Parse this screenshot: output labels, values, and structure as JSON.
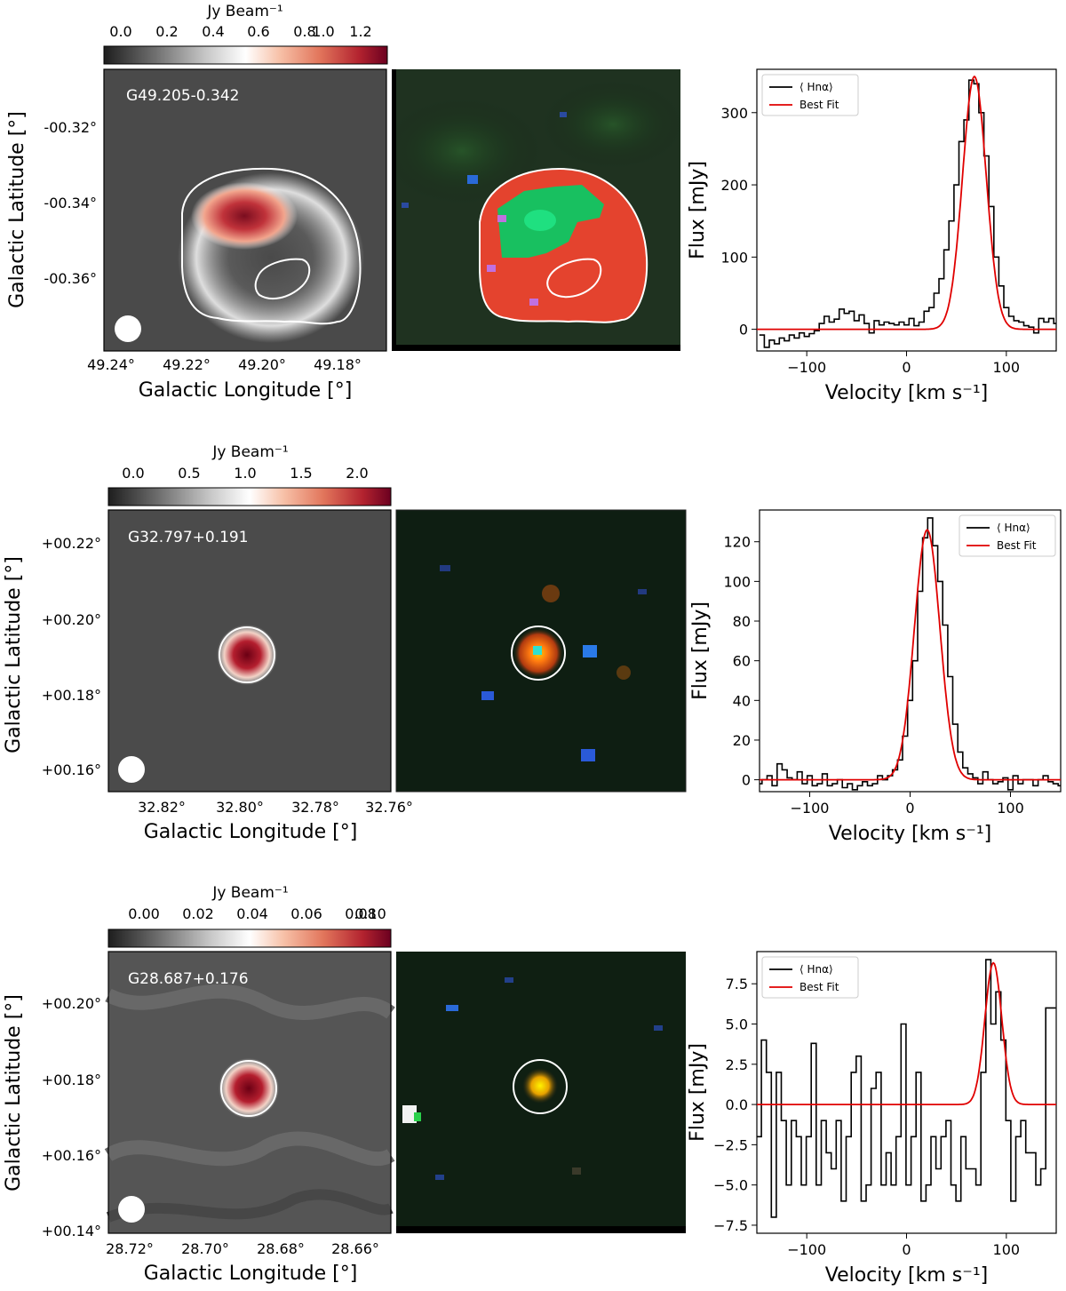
{
  "colors": {
    "cmap": [
      "#1e1e1e",
      "#6f6f6f",
      "#c7c7c7",
      "#ffffff",
      "#f7c1a8",
      "#e2765c",
      "#b3232f",
      "#6b0020"
    ],
    "fit": "#e00000",
    "obs": "#000000",
    "contour": "#ffffff"
  },
  "panels": [
    {
      "source_label": "G49.205-0.342",
      "colorbar": {
        "label": "Jy Beam⁻¹",
        "ticks": [
          "0.0",
          "0.2",
          "0.4",
          "0.6",
          "0.8",
          "1.0",
          "1.2"
        ]
      },
      "map": {
        "lon_ticks": [
          "49.24°",
          "49.22°",
          "49.20°",
          "49.18°"
        ],
        "lat_ticks": [
          "-00.32°",
          "-00.34°",
          "-00.36°"
        ],
        "xlabel": "Galactic Longitude [°]",
        "ylabel": "Galactic Latitude [°]"
      },
      "chart_data": {
        "type": "line",
        "xlabel": "Velocity [km s⁻¹]",
        "ylabel": "Flux [mJy]",
        "xlim": [
          -150,
          150
        ],
        "ylim": [
          -30,
          360
        ],
        "xticks": [
          -100,
          0,
          100
        ],
        "yticks": [
          0,
          100,
          200,
          300
        ],
        "legend": {
          "position": "top-left",
          "entries": [
            "⟨ Hnα⟩",
            "Best Fit"
          ]
        },
        "fit": {
          "amplitude": 350,
          "center": 68,
          "fwhm": 28
        },
        "step_width": 5,
        "series": [
          {
            "name": "⟨ Hnα⟩",
            "x": [
              -145,
              -140,
              -135,
              -130,
              -125,
              -120,
              -115,
              -110,
              -105,
              -100,
              -95,
              -90,
              -85,
              -80,
              -75,
              -70,
              -65,
              -60,
              -55,
              -50,
              -45,
              -40,
              -35,
              -30,
              -25,
              -20,
              -15,
              -10,
              -5,
              0,
              5,
              10,
              15,
              20,
              25,
              30,
              35,
              40,
              45,
              50,
              55,
              60,
              65,
              70,
              75,
              80,
              85,
              90,
              95,
              100,
              105,
              110,
              115,
              120,
              125,
              130,
              135,
              140,
              145,
              150
            ],
            "values": [
              -8,
              -25,
              -15,
              -20,
              -12,
              -16,
              -8,
              -12,
              -5,
              -10,
              -6,
              -2,
              8,
              18,
              10,
              14,
              28,
              22,
              25,
              12,
              20,
              8,
              -5,
              12,
              6,
              10,
              8,
              6,
              10,
              6,
              15,
              5,
              10,
              25,
              30,
              50,
              70,
              110,
              150,
              200,
              260,
              290,
              345,
              340,
              300,
              240,
              170,
              100,
              60,
              30,
              18,
              12,
              10,
              5,
              3,
              -5,
              15,
              10,
              15,
              8
            ]
          }
        ]
      }
    },
    {
      "source_label": "G32.797+0.191",
      "colorbar": {
        "label": "Jy Beam⁻¹",
        "ticks": [
          "0.0",
          "0.5",
          "1.0",
          "1.5",
          "2.0"
        ]
      },
      "map": {
        "lon_ticks": [
          "32.82°",
          "32.80°",
          "32.78°",
          "32.76°"
        ],
        "lat_ticks": [
          "+00.22°",
          "+00.20°",
          "+00.18°",
          "+00.16°"
        ],
        "xlabel": "Galactic Longitude [°]",
        "ylabel": "Galactic Latitude [°]"
      },
      "chart_data": {
        "type": "line",
        "xlabel": "Velocity [km s⁻¹]",
        "ylabel": "Flux [mJy]",
        "xlim": [
          -150,
          150
        ],
        "ylim": [
          -6,
          136
        ],
        "xticks": [
          -100,
          0,
          100
        ],
        "yticks": [
          0,
          20,
          40,
          60,
          80,
          100,
          120
        ],
        "legend": {
          "position": "top-right",
          "entries": [
            "⟨ Hnα⟩",
            "Best Fit"
          ]
        },
        "fit": {
          "amplitude": 126,
          "center": 17,
          "fwhm": 30
        },
        "step_width": 5,
        "series": [
          {
            "name": "⟨ Hnα⟩",
            "x": [
              -150,
              -145,
              -140,
              -135,
              -130,
              -125,
              -120,
              -115,
              -110,
              -105,
              -100,
              -95,
              -90,
              -85,
              -80,
              -75,
              -70,
              -65,
              -60,
              -55,
              -50,
              -45,
              -40,
              -35,
              -30,
              -25,
              -20,
              -15,
              -10,
              -5,
              0,
              5,
              10,
              15,
              20,
              25,
              30,
              35,
              40,
              45,
              50,
              55,
              60,
              65,
              70,
              75,
              80,
              85,
              90,
              95,
              100,
              105,
              110,
              115,
              120,
              125,
              130,
              135,
              140,
              145,
              150
            ],
            "values": [
              -2,
              0,
              2,
              -3,
              8,
              5,
              1,
              0,
              4,
              -2,
              2,
              -3,
              -2,
              3,
              -3,
              -2,
              0,
              -4,
              -2,
              -5,
              -3,
              -1,
              -3,
              -2,
              2,
              0,
              2,
              5,
              10,
              22,
              40,
              60,
              95,
              122,
              132,
              118,
              100,
              78,
              52,
              28,
              14,
              6,
              3,
              1,
              -2,
              4,
              0,
              -2,
              -1,
              1,
              -5,
              2,
              -2,
              0,
              0,
              -3,
              0,
              2,
              -1,
              -2,
              -3
            ]
          }
        ]
      }
    },
    {
      "source_label": "G28.687+0.176",
      "colorbar": {
        "label": "Jy Beam⁻¹",
        "ticks": [
          "0.00",
          "0.02",
          "0.04",
          "0.06",
          "0.08",
          "0.10"
        ]
      },
      "map": {
        "lon_ticks": [
          "28.72°",
          "28.70°",
          "28.68°",
          "28.66°"
        ],
        "lat_ticks": [
          "+00.20°",
          "+00.18°",
          "+00.16°",
          "+00.14°"
        ],
        "xlabel": "Galactic Longitude [°]",
        "ylabel": "Galactic Latitude [°]"
      },
      "chart_data": {
        "type": "line",
        "xlabel": "Velocity [km s⁻¹]",
        "ylabel": "Flux [mJy]",
        "xlim": [
          -150,
          150
        ],
        "ylim": [
          -8,
          9.5
        ],
        "xticks": [
          -100,
          0,
          100
        ],
        "yticks": [
          -7.5,
          -5.0,
          -2.5,
          0.0,
          2.5,
          5.0,
          7.5
        ],
        "legend": {
          "position": "top-left",
          "entries": [
            "⟨ Hnα⟩",
            "Best Fit"
          ]
        },
        "fit": {
          "amplitude": 8.8,
          "center": 87,
          "fwhm": 20
        },
        "step_width": 5,
        "series": [
          {
            "name": "⟨ Hnα⟩",
            "x": [
              -148,
              -143,
              -138,
              -133,
              -128,
              -123,
              -118,
              -113,
              -108,
              -103,
              -98,
              -93,
              -88,
              -83,
              -78,
              -73,
              -68,
              -63,
              -58,
              -53,
              -48,
              -43,
              -38,
              -33,
              -28,
              -23,
              -18,
              -13,
              -8,
              -3,
              2,
              7,
              12,
              17,
              22,
              27,
              32,
              37,
              42,
              47,
              52,
              57,
              62,
              67,
              72,
              77,
              82,
              87,
              92,
              97,
              102,
              107,
              112,
              117,
              122,
              127,
              132,
              137,
              142,
              147
            ],
            "values": [
              -2,
              4,
              2,
              -7,
              2,
              -1,
              -5,
              -1,
              -2,
              -5,
              -2,
              3.8,
              -5,
              -1,
              -3,
              -4,
              -1,
              -6,
              -2,
              2,
              3,
              -6,
              -5,
              1,
              2,
              -5,
              -3,
              -5,
              -2,
              5,
              -5,
              -2,
              2,
              -6,
              -5,
              -2,
              -4,
              -2,
              -1,
              -5,
              -6,
              -2,
              -4,
              -4,
              -5,
              2,
              9,
              5,
              7,
              4,
              -1,
              -6,
              -2,
              -1,
              -3,
              -3,
              -5,
              -4,
              6,
              6
            ]
          }
        ]
      }
    }
  ]
}
